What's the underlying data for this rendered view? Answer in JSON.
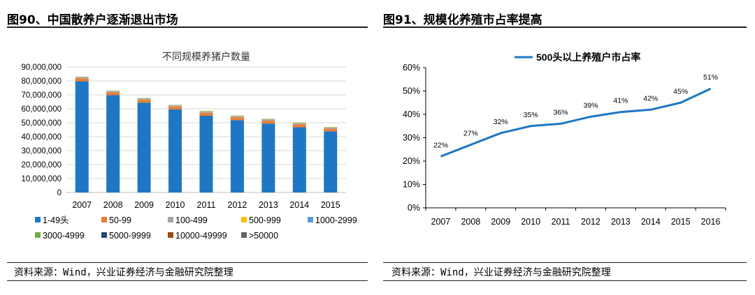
{
  "left": {
    "figure_title": "图90、中国散养户逐渐退出市场",
    "source": "资料来源：Wind，兴业证券经济与金融研究院整理"
  },
  "right": {
    "figure_title": "图91、规模化养殖市占率提高",
    "source": "资料来源：Wind，兴业证券经济与金融研究院整理"
  },
  "chart_data": [
    {
      "type": "bar",
      "stacked": true,
      "title": "不同规模养猪户数量",
      "categories": [
        "2007",
        "2008",
        "2009",
        "2010",
        "2011",
        "2012",
        "2013",
        "2014",
        "2015"
      ],
      "ylim": [
        0,
        90000000
      ],
      "yticks": [
        "0",
        "10,000,000",
        "20,000,000",
        "30,000,000",
        "40,000,000",
        "50,000,000",
        "60,000,000",
        "70,000,000",
        "80,000,000",
        "90,000,000"
      ],
      "grid": true,
      "legend_position": "bottom",
      "series": [
        {
          "name": "1-49头",
          "color": "#1f77c4",
          "values": [
            79700000,
            69800000,
            64400000,
            59500000,
            55000000,
            51800000,
            49400000,
            46800000,
            43900000
          ]
        },
        {
          "name": "50-99",
          "color": "#ed7d31",
          "values": [
            2000000,
            1900000,
            1900000,
            1900000,
            2100000,
            1900000,
            2000000,
            2000000,
            1800000
          ]
        },
        {
          "name": "100-499",
          "color": "#a5a5a5",
          "values": [
            1000000,
            960000,
            1000000,
            990000,
            1000000,
            1000000,
            960000,
            910000,
            830000
          ]
        },
        {
          "name": "500-999",
          "color": "#ffc000",
          "values": [
            220000,
            270000,
            280000,
            290000,
            300000,
            290000,
            300000,
            300000,
            300000
          ]
        },
        {
          "name": "1000-2999",
          "color": "#5b9bd5",
          "values": [
            80000,
            110000,
            120000,
            130000,
            130000,
            130000,
            130000,
            130000,
            130000
          ]
        },
        {
          "name": "3000-4999",
          "color": "#70ad47",
          "values": [
            20000,
            30000,
            30000,
            30000,
            30000,
            30000,
            30000,
            30000,
            30000
          ]
        },
        {
          "name": "5000-9999",
          "color": "#264478",
          "values": [
            10000,
            10000,
            10000,
            10000,
            10000,
            10000,
            10000,
            10000,
            10000
          ]
        },
        {
          "name": "10000-49999",
          "color": "#9e480e",
          "values": [
            3000,
            4000,
            4500,
            5000,
            5000,
            5000,
            5000,
            5000,
            5000
          ]
        },
        {
          "name": ">50000",
          "color": "#636363",
          "values": [
            200,
            200,
            200,
            200,
            300,
            300,
            300,
            300,
            300
          ]
        }
      ]
    },
    {
      "type": "line",
      "categories": [
        "2007",
        "2008",
        "2009",
        "2010",
        "2011",
        "2012",
        "2013",
        "2014",
        "2015",
        "2016"
      ],
      "ylim": [
        0,
        60
      ],
      "yticks": [
        "0%",
        "10%",
        "20%",
        "30%",
        "40%",
        "50%",
        "60%"
      ],
      "grid": false,
      "legend_position": "top",
      "series": [
        {
          "name": "500头以上养殖户市占率",
          "color": "#1f77c4",
          "values": [
            22,
            27,
            32,
            35,
            36,
            39,
            41,
            42,
            45,
            51
          ],
          "labels": [
            "22%",
            "27%",
            "32%",
            "35%",
            "36%",
            "39%",
            "41%",
            "42%",
            "45%",
            "51%"
          ]
        }
      ]
    }
  ]
}
